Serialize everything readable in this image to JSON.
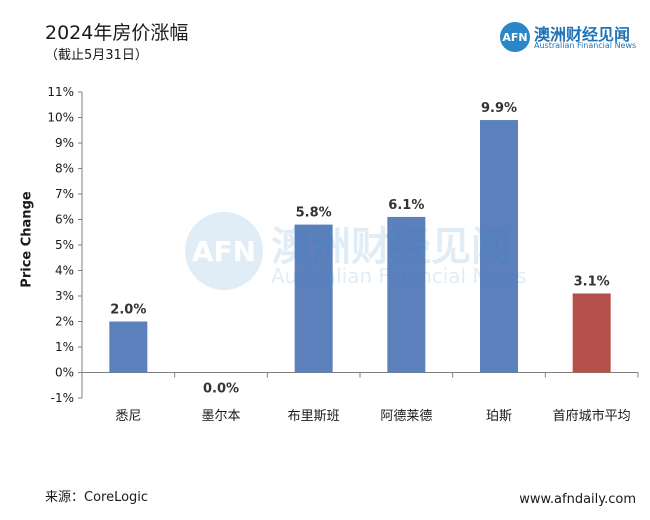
{
  "header": {
    "title": "2024年房价涨幅",
    "subtitle": "（截止5月31日）"
  },
  "logo": {
    "mark": "AFN",
    "name_cn": "澳洲财经见闻",
    "name_en": "Australian Financial News"
  },
  "watermark": {
    "mark": "AFN",
    "name_cn": "澳洲财经见闻",
    "name_en": "Australian Financial News"
  },
  "footer": {
    "source": "来源：CoreLogic",
    "website": "www.afndaily.com"
  },
  "chart_data": {
    "type": "bar",
    "title": "2024年房价涨幅",
    "subtitle": "（截止5月31日）",
    "xlabel": "",
    "ylabel": "Price Change",
    "categories": [
      "悉尼",
      "墨尔本",
      "布里斯班",
      "阿德莱德",
      "珀斯",
      "首府城市平均"
    ],
    "values": [
      2.0,
      0.0,
      5.8,
      6.1,
      9.9,
      3.1
    ],
    "data_labels": [
      "2.0%",
      "0.0%",
      "5.8%",
      "6.1%",
      "9.9%",
      "3.1%"
    ],
    "colors": [
      "#5b80bc",
      "#5b80bc",
      "#5b80bc",
      "#5b80bc",
      "#5b80bc",
      "#b5504a"
    ],
    "ylim": [
      -1,
      11
    ],
    "yticks": [
      -1,
      0,
      1,
      2,
      3,
      4,
      5,
      6,
      7,
      8,
      9,
      10,
      11
    ],
    "ytick_labels": [
      "-1%",
      "0%",
      "1%",
      "2%",
      "3%",
      "4%",
      "5%",
      "6%",
      "7%",
      "8%",
      "9%",
      "10%",
      "11%"
    ],
    "grid": false,
    "legend": "none"
  }
}
